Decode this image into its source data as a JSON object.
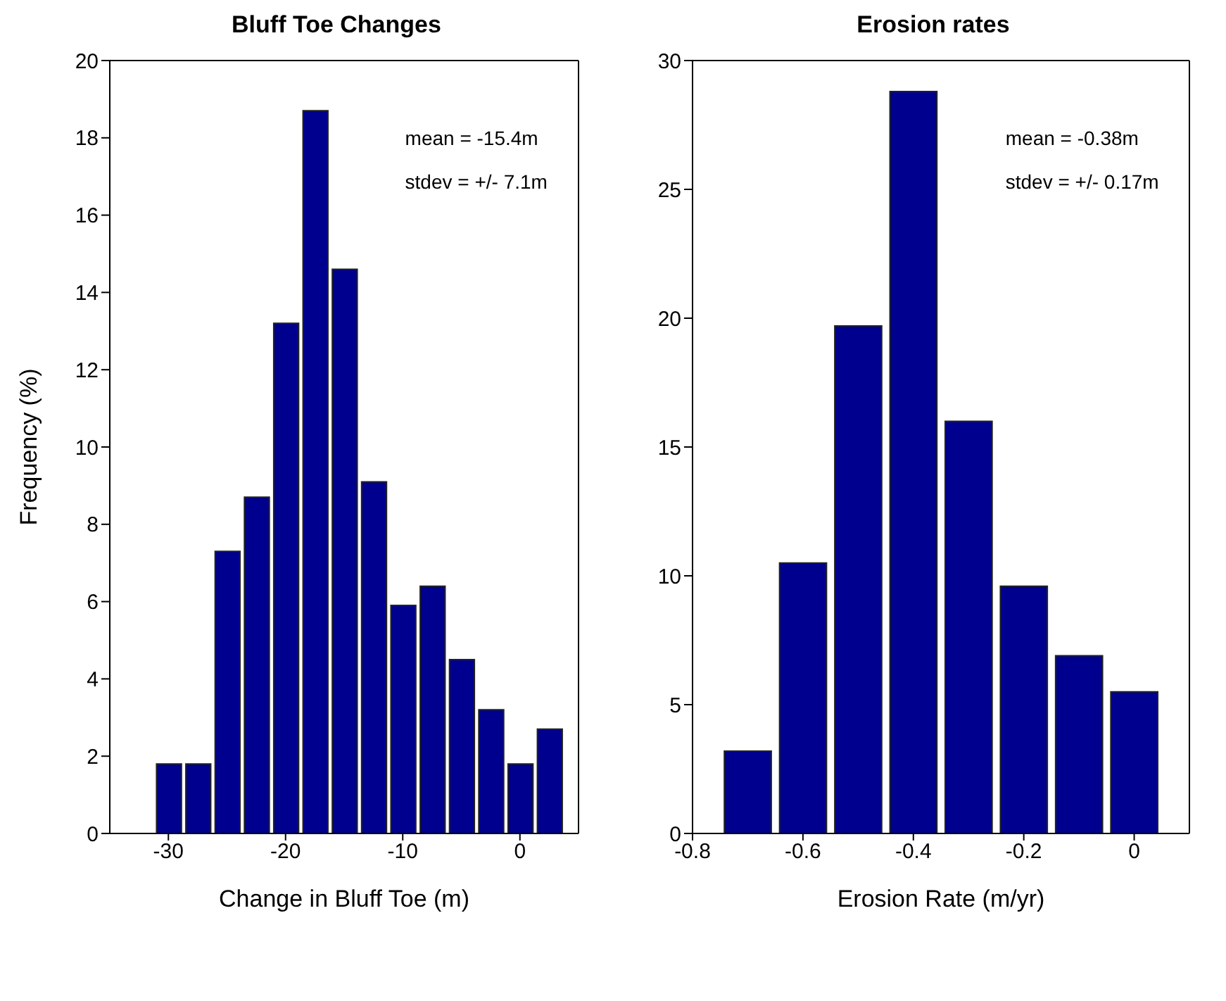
{
  "chart_data": [
    {
      "type": "histogram",
      "title": "Bluff Toe Changes",
      "xlabel": "Change in Bluff Toe (m)",
      "ylabel": "Frequency (%)",
      "bins": [
        -31.25,
        -28.75,
        -26.25,
        -23.75,
        -21.25,
        -18.75,
        -16.25,
        -13.75,
        -11.25,
        -8.75,
        -6.25,
        -3.75,
        -1.25,
        1.25,
        3.75
      ],
      "values": [
        1.8,
        1.8,
        7.3,
        8.7,
        13.2,
        18.7,
        14.6,
        9.1,
        5.9,
        6.4,
        4.5,
        3.2,
        1.8,
        2.7
      ],
      "color": "#00008f",
      "xlim": [
        -35,
        5
      ],
      "xticks": [
        -30,
        -20,
        -10,
        0
      ],
      "ylim": [
        0,
        20
      ],
      "yticks": [
        0,
        2,
        4,
        6,
        8,
        10,
        12,
        14,
        16,
        18,
        20
      ],
      "annotations": [
        "mean = -15.4m",
        "stdev = +/- 7.1m"
      ]
    },
    {
      "type": "histogram",
      "title": "Erosion rates",
      "xlabel": "Erosion Rate (m/yr)",
      "bins": [
        -0.75,
        -0.65,
        -0.55,
        -0.45,
        -0.35,
        -0.25,
        -0.15,
        -0.05,
        0.05
      ],
      "values": [
        3.2,
        10.5,
        19.7,
        28.8,
        16.0,
        9.6,
        6.9,
        5.5
      ],
      "color": "#00008f",
      "xlim": [
        -0.8,
        0.1
      ],
      "xticks": [
        -0.8,
        -0.6,
        -0.4,
        -0.2,
        0
      ],
      "ylim": [
        0,
        30
      ],
      "yticks": [
        0,
        5,
        10,
        15,
        20,
        25,
        30
      ],
      "annotations": [
        "mean = -0.38m",
        "stdev = +/- 0.17m"
      ]
    }
  ]
}
